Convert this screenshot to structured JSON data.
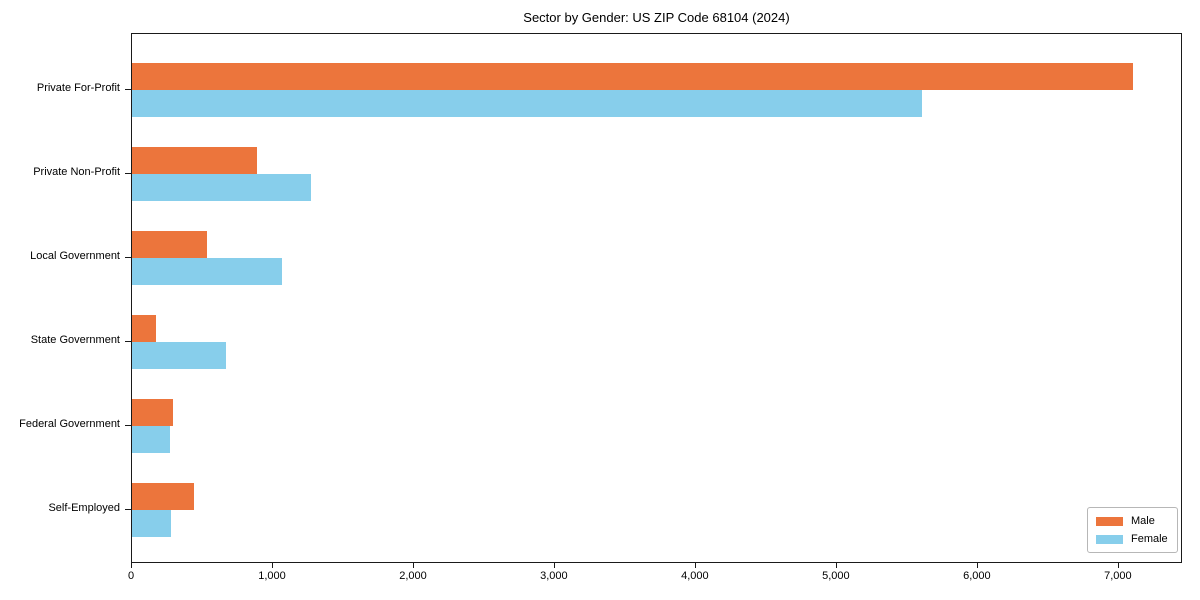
{
  "chart_data": {
    "type": "bar",
    "orientation": "horizontal",
    "title": "Sector by Gender: US ZIP Code 68104 (2024)",
    "xlabel": "",
    "ylabel": "",
    "categories": [
      "Private For-Profit",
      "Private Non-Profit",
      "Local Government",
      "State Government",
      "Federal Government",
      "Self-Employed"
    ],
    "series": [
      {
        "name": "Male",
        "color": "#ec753c",
        "values": [
          7100,
          885,
          530,
          170,
          290,
          440
        ]
      },
      {
        "name": "Female",
        "color": "#87ceeb",
        "values": [
          5600,
          1270,
          1065,
          665,
          270,
          275
        ]
      }
    ],
    "xlim": [
      0,
      7455
    ],
    "xticks": [
      0,
      1000,
      2000,
      3000,
      4000,
      5000,
      6000,
      7000
    ],
    "xtick_labels": [
      "0",
      "1,000",
      "2,000",
      "3,000",
      "4,000",
      "5,000",
      "6,000",
      "7,000"
    ],
    "grid": false,
    "legend": {
      "position": "lower right",
      "entries": [
        {
          "label": "Male",
          "color": "#ec753c"
        },
        {
          "label": "Female",
          "color": "#87ceeb"
        }
      ]
    }
  }
}
